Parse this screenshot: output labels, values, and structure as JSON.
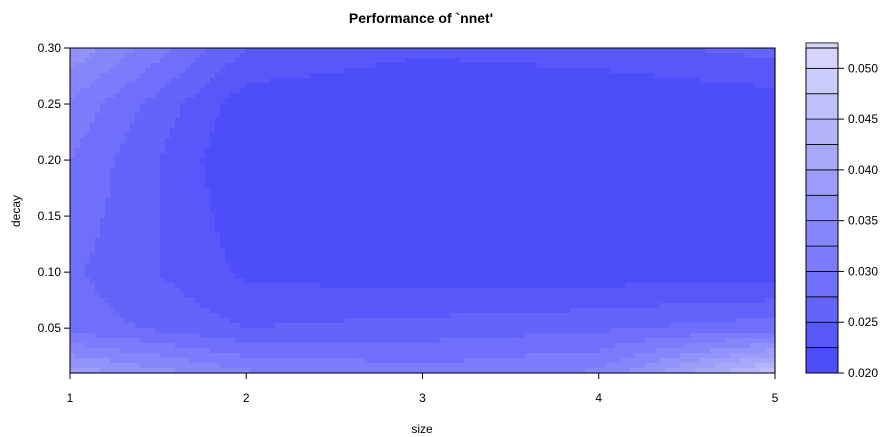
{
  "chart_data": {
    "type": "heatmap",
    "title": "Performance of `nnet'",
    "xlabel": "size",
    "ylabel": "decay",
    "x": [
      1,
      2,
      3,
      4,
      5
    ],
    "y": [
      0.01,
      0.05,
      0.1,
      0.15,
      0.2,
      0.25,
      0.3
    ],
    "xlim": [
      1,
      5
    ],
    "ylim": [
      0.01,
      0.3
    ],
    "x_ticks": [
      "1",
      "2",
      "3",
      "4",
      "5"
    ],
    "y_ticks": [
      "0.05",
      "0.10",
      "0.15",
      "0.20",
      "0.25",
      "0.30"
    ],
    "z": [
      [
        0.039,
        0.033,
        0.031,
        0.033,
        0.047
      ],
      [
        0.029,
        0.025,
        0.026,
        0.027,
        0.029
      ],
      [
        0.028,
        0.022,
        0.021,
        0.021,
        0.021
      ],
      [
        0.029,
        0.021,
        0.02,
        0.02,
        0.02
      ],
      [
        0.03,
        0.02,
        0.02,
        0.02,
        0.02
      ],
      [
        0.032,
        0.021,
        0.02,
        0.02,
        0.021
      ],
      [
        0.037,
        0.025,
        0.023,
        0.024,
        0.026
      ]
    ],
    "colorbar": {
      "min": 0.02,
      "max": 0.052,
      "step": 0.0025,
      "ticks": [
        "0.020",
        "0.025",
        "0.030",
        "0.035",
        "0.040",
        "0.045",
        "0.050"
      ]
    },
    "colors": {
      "low": "#4d4dfa",
      "high": "#d6d6fc"
    }
  }
}
